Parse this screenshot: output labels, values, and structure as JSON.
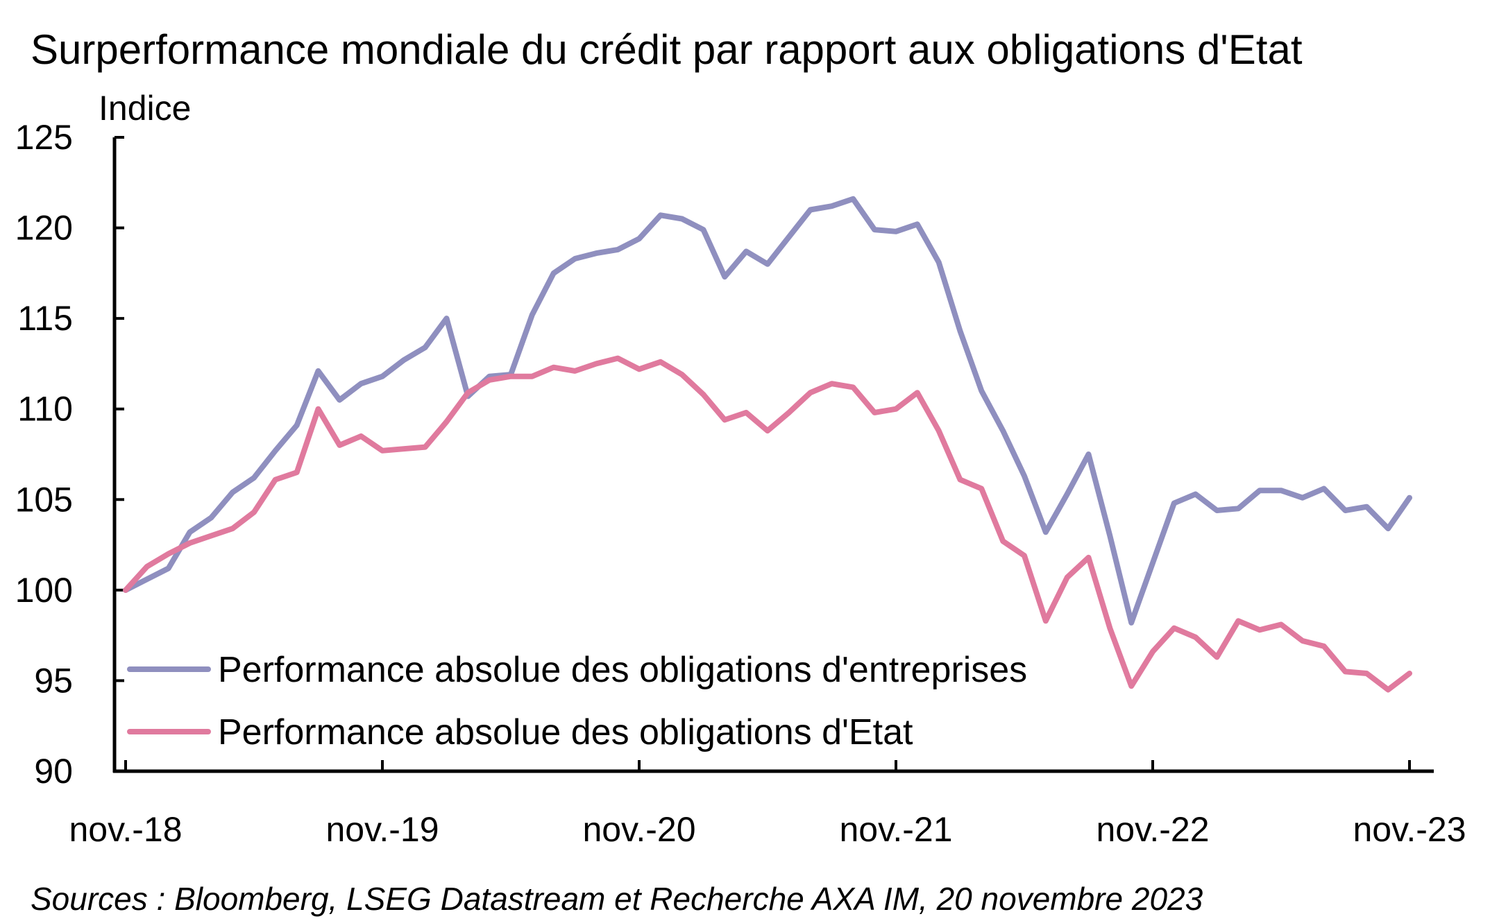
{
  "chart_data": {
    "type": "line",
    "title": "Surperformance mondiale du crédit par rapport aux obligations d'Etat",
    "ylabel": "Indice",
    "xlabel": "",
    "ylim": [
      90,
      125
    ],
    "yticks": [
      90,
      95,
      100,
      105,
      110,
      115,
      120,
      125
    ],
    "xticks": [
      "nov.-18",
      "nov.-19",
      "nov.-20",
      "nov.-21",
      "nov.-22",
      "nov.-23"
    ],
    "x_start": "nov.-18",
    "x_frequency": "monthly",
    "grid": false,
    "legend_position": "bottom-left",
    "series": [
      {
        "name": "Performance absolue des obligations d'entreprises",
        "color": "#8f8fbf",
        "values": [
          100.0,
          100.6,
          101.2,
          103.2,
          104.0,
          105.4,
          106.2,
          107.7,
          109.1,
          112.1,
          110.5,
          111.4,
          111.8,
          112.7,
          113.4,
          115.0,
          110.7,
          111.8,
          111.9,
          115.2,
          117.5,
          118.3,
          118.6,
          118.8,
          119.4,
          120.7,
          120.5,
          119.9,
          117.3,
          118.7,
          118.0,
          119.5,
          121.0,
          121.2,
          121.6,
          119.9,
          119.8,
          120.2,
          118.1,
          114.3,
          111.0,
          108.8,
          106.3,
          103.2,
          105.3,
          107.5,
          103.0,
          98.2,
          101.5,
          104.8,
          105.3,
          104.4,
          104.5,
          105.5,
          105.5,
          105.1,
          105.6,
          104.4,
          104.6,
          103.4,
          105.1
        ]
      },
      {
        "name": "Performance absolue des obligations d'Etat",
        "color": "#e07a9e",
        "values": [
          100.0,
          101.3,
          102.0,
          102.6,
          103.0,
          103.4,
          104.3,
          106.1,
          106.5,
          110.0,
          108.0,
          108.5,
          107.7,
          107.8,
          107.9,
          109.3,
          110.9,
          111.6,
          111.8,
          111.8,
          112.3,
          112.1,
          112.5,
          112.8,
          112.2,
          112.6,
          111.9,
          110.8,
          109.4,
          109.8,
          108.8,
          109.8,
          110.9,
          111.4,
          111.2,
          109.8,
          110.0,
          110.9,
          108.8,
          106.1,
          105.6,
          102.7,
          101.9,
          98.3,
          100.7,
          101.8,
          97.9,
          94.7,
          96.6,
          97.9,
          97.4,
          96.3,
          98.3,
          97.8,
          98.1,
          97.2,
          96.9,
          95.5,
          95.4,
          94.5,
          95.4
        ]
      }
    ]
  },
  "source_note": "Sources : Bloomberg, LSEG Datastream et Recherche AXA IM, 20 novembre 2023"
}
